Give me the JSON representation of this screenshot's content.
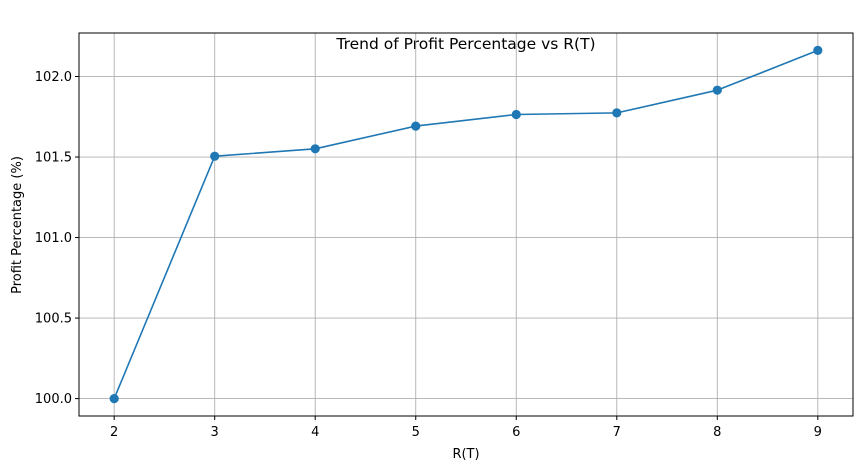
{
  "chart_data": {
    "type": "line",
    "title": "Trend of Profit Percentage vs R(T)",
    "xlabel": "R(T)",
    "ylabel": "Profit Percentage (%)",
    "x": [
      2,
      3,
      4,
      5,
      6,
      7,
      8,
      9
    ],
    "series": [
      {
        "values": [
          100.0,
          101.505,
          101.551,
          101.692,
          101.764,
          101.774,
          101.915,
          102.162
        ]
      }
    ],
    "x_ticks": [
      "2",
      "3",
      "4",
      "5",
      "6",
      "7",
      "8",
      "9"
    ],
    "y_ticks": [
      "100.0",
      "100.5",
      "101.0",
      "101.5",
      "102.0"
    ],
    "xlim": [
      1.65,
      9.35
    ],
    "ylim": [
      99.892,
      102.27
    ],
    "grid": true,
    "marker": "circle",
    "colors": {
      "line": "#1f77b4",
      "grid": "#b0b0b0",
      "spine": "#000000"
    }
  }
}
